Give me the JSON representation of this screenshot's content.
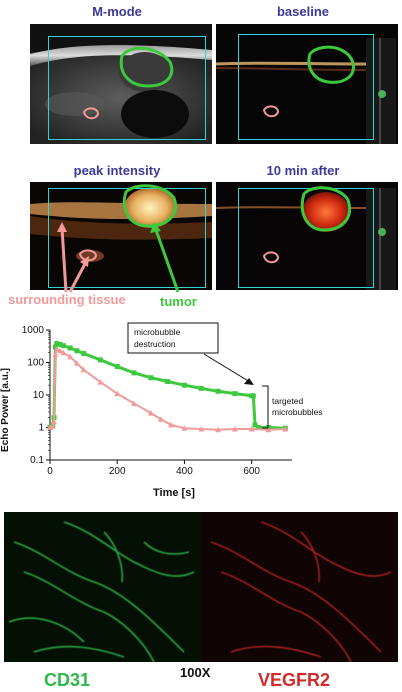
{
  "panels": {
    "mmode": "M-mode",
    "baseline": "baseline",
    "peak": "peak intensity",
    "after": "10 min after"
  },
  "annotations": {
    "surrounding": "surrounding tissue",
    "tumor": "tumor",
    "destruction_line1": "microbubble",
    "destruction_line2": "destruction",
    "targeted_line1": "targeted",
    "targeted_line2": "microbubbles"
  },
  "colors": {
    "tumor": "#3dc93d",
    "tissue": "#f29a9a",
    "roi": "#2fd4d4",
    "cd31": "#2fb84a",
    "vegfr2": "#d42a2a"
  },
  "chart_data": {
    "type": "scatter",
    "xlabel": "Time [s]",
    "ylabel": "Echo Power [a.u.]",
    "yscale": "log",
    "xlim": [
      0,
      720
    ],
    "ylim": [
      0.1,
      1000
    ],
    "x_ticks": [
      "0",
      "200",
      "400",
      "600"
    ],
    "y_ticks": [
      "0.1",
      "1",
      "10",
      "100",
      "1000"
    ],
    "series": [
      {
        "color": "#3dc93d",
        "marker": "square",
        "x": [
          0,
          8,
          12,
          16,
          20,
          30,
          40,
          60,
          80,
          100,
          150,
          200,
          250,
          300,
          350,
          400,
          450,
          500,
          550,
          600,
          605,
          610,
          620,
          650,
          700
        ],
        "y": [
          1,
          1.2,
          2,
          300,
          380,
          360,
          330,
          280,
          230,
          190,
          120,
          75,
          48,
          34,
          26,
          20,
          16,
          13,
          11,
          9.5,
          9.3,
          1.2,
          1.0,
          1.0,
          0.95
        ]
      },
      {
        "color": "#f29a9a",
        "marker": "triangle",
        "x": [
          0,
          8,
          12,
          16,
          20,
          30,
          40,
          60,
          80,
          100,
          150,
          200,
          250,
          300,
          330,
          360,
          400,
          450,
          500,
          550,
          600,
          650,
          700
        ],
        "y": [
          1,
          1.1,
          1.5,
          180,
          260,
          230,
          200,
          150,
          95,
          60,
          25,
          11,
          5.5,
          2.8,
          1.8,
          1.2,
          0.95,
          0.9,
          0.85,
          0.9,
          0.9,
          0.85,
          0.9
        ]
      }
    ]
  },
  "micro": {
    "left_label": "CD31",
    "center_label": "100X",
    "right_label": "VEGFR2"
  }
}
